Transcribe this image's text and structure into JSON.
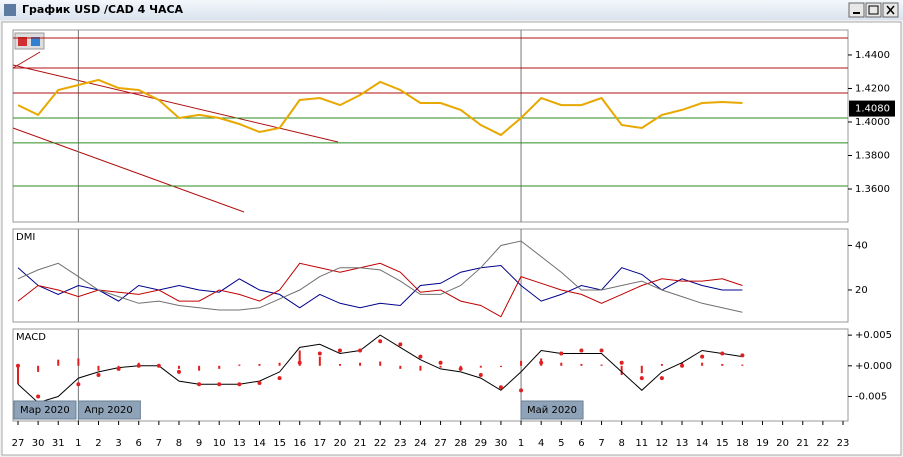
{
  "window": {
    "title": "График USD /CAD  4 ЧАСА"
  },
  "chart_data": [
    {
      "type": "line",
      "series": [
        {
          "color": "#e8a800",
          "values": [
            1.4101,
            1.4042,
            1.4191,
            1.4221,
            1.4251,
            1.4203,
            1.4191,
            1.4131,
            1.4024,
            1.4042,
            1.4024,
            1.3988,
            1.394,
            1.3964,
            1.4131,
            1.4143,
            1.4101,
            1.4161,
            1.4239,
            1.4191,
            1.4113,
            1.4113,
            1.4072,
            1.3982,
            1.3922,
            1.4024,
            1.4143,
            1.4101,
            1.4101,
            1.4143,
            1.3982,
            1.3964,
            1.4042,
            1.4072,
            1.4113,
            1.4119,
            1.4113,
            null,
            null,
            null,
            null,
            null
          ]
        }
      ],
      "ylim": [
        1.3403,
        1.4549
      ],
      "yticks": [
        {
          "value": 1.44,
          "label": "1.4400"
        },
        {
          "value": 1.42,
          "label": "1.4200"
        },
        {
          "value": 1.4,
          "label": "1.4000"
        },
        {
          "value": 1.38,
          "label": "1.3800"
        },
        {
          "value": 1.36,
          "label": "1.3600"
        }
      ],
      "last_price": {
        "value": 1.408,
        "label": "1.4080"
      },
      "levels": [
        {
          "value": 1.4501,
          "color": "#b01010"
        },
        {
          "value": 1.4322,
          "color": "#b01010"
        },
        {
          "value": 1.4173,
          "color": "#b01010"
        },
        {
          "value": 1.4024,
          "color": "#2e8b20"
        },
        {
          "value": 1.3875,
          "color": "#2e8b20"
        },
        {
          "value": 1.3618,
          "color": "#2e8b20"
        }
      ]
    },
    {
      "type": "line",
      "title": "DMI",
      "series": [
        {
          "color": "#00008b",
          "values": [
            30,
            22,
            18,
            22,
            20,
            15,
            22,
            20,
            22,
            20,
            19,
            25,
            20,
            18,
            12,
            18,
            14,
            12,
            14,
            13,
            22,
            23,
            28,
            30,
            31,
            22,
            15,
            18,
            22,
            20,
            30,
            27,
            20,
            25,
            22,
            20,
            20,
            null,
            null,
            null,
            null,
            null
          ]
        },
        {
          "color": "#c00000",
          "values": [
            15,
            22,
            20,
            17,
            20,
            19,
            18,
            20,
            15,
            15,
            20,
            18,
            15,
            20,
            32,
            30,
            28,
            30,
            32,
            28,
            19,
            20,
            15,
            13,
            8,
            26,
            23,
            20,
            18,
            14,
            18,
            22,
            25,
            24,
            24,
            25,
            22,
            null,
            null,
            null,
            null,
            null
          ]
        },
        {
          "color": "#707070",
          "values": [
            25,
            29,
            32,
            26,
            20,
            17,
            14,
            15,
            13,
            12,
            11,
            11,
            12,
            16,
            20,
            26,
            30,
            30,
            29,
            24,
            18,
            18,
            22,
            30,
            40,
            42,
            35,
            28,
            20,
            20,
            22,
            24,
            20,
            17,
            14,
            12,
            10,
            null,
            null,
            null,
            null,
            null
          ]
        }
      ],
      "ylim": [
        5.6,
        47.4
      ],
      "yticks": [
        40,
        20
      ]
    },
    {
      "type": "line",
      "title": "MACD",
      "categories": [
        "27",
        "30",
        "31",
        "1",
        "2",
        "3",
        "6",
        "7",
        "8",
        "9",
        "10",
        "13",
        "14",
        "15",
        "16",
        "17",
        "20",
        "21",
        "22",
        "23",
        "24",
        "27",
        "28",
        "29",
        "30",
        "1",
        "4",
        "5",
        "6",
        "7",
        "8",
        "11",
        "12",
        "13",
        "14",
        "15",
        "18",
        "19",
        "20",
        "21",
        "22",
        "23"
      ],
      "series": [
        {
          "color": "#e02020",
          "style": "histogram",
          "values": [
            -0.003,
            -0.001,
            0.001,
            0.0012,
            -0.0008,
            -0.0005,
            0.0005,
            0.0002,
            -0.0005,
            -0.0008,
            -0.0005,
            0.0002,
            0.0003,
            0.0005,
            0.0025,
            0.0015,
            0.0003,
            0.0005,
            0.0007,
            -0.0005,
            -0.0008,
            -0.0003,
            -0.0005,
            -0.0003,
            -0.0002,
            0.0008,
            0.0012,
            0.0005,
            0.0003,
            0.0002,
            -0.0015,
            -0.0012,
            0.0003,
            0.0005,
            0.0005,
            0.0003,
            0.0002,
            null,
            null,
            null,
            null,
            null
          ]
        },
        {
          "color": "#000000",
          "style": "line",
          "values": [
            -0.003,
            -0.006,
            -0.005,
            -0.002,
            -0.001,
            -0.0003,
            0,
            0,
            -0.0025,
            -0.003,
            -0.003,
            -0.003,
            -0.0025,
            -0.001,
            0.003,
            0.0035,
            0.002,
            0.0025,
            0.005,
            0.003,
            0.001,
            -0.0005,
            -0.001,
            -0.002,
            -0.004,
            -0.001,
            0.0025,
            0.002,
            0.002,
            0.002,
            -0.001,
            -0.004,
            -0.001,
            0.0005,
            0.0025,
            0.002,
            0.0015,
            null,
            null,
            null,
            null,
            null
          ]
        },
        {
          "color": "#e02020",
          "style": "dots",
          "values": [
            0,
            -0.005,
            -0.006,
            -0.003,
            -0.0015,
            -0.0005,
            0,
            0,
            -0.001,
            -0.003,
            -0.003,
            -0.003,
            -0.0028,
            -0.002,
            0.0005,
            0.002,
            0.0025,
            0.0025,
            0.004,
            0.0035,
            0.0015,
            0.0005,
            -0.0005,
            -0.0015,
            -0.0035,
            -0.004,
            0.0005,
            0.002,
            0.0025,
            0.0025,
            0.0005,
            -0.002,
            -0.002,
            0,
            0.0015,
            0.002,
            0.0017,
            null,
            null,
            null,
            null,
            null
          ]
        }
      ],
      "ylim": [
        -0.009,
        0.006
      ],
      "yticks": [
        {
          "value": 0.005,
          "label": "+0.005"
        },
        {
          "value": 0,
          "label": "+0.000"
        },
        {
          "value": -0.005,
          "label": "-0.005"
        }
      ],
      "period_labels": [
        "Мар 2020",
        "Апр 2020",
        "Май 2020"
      ]
    }
  ]
}
